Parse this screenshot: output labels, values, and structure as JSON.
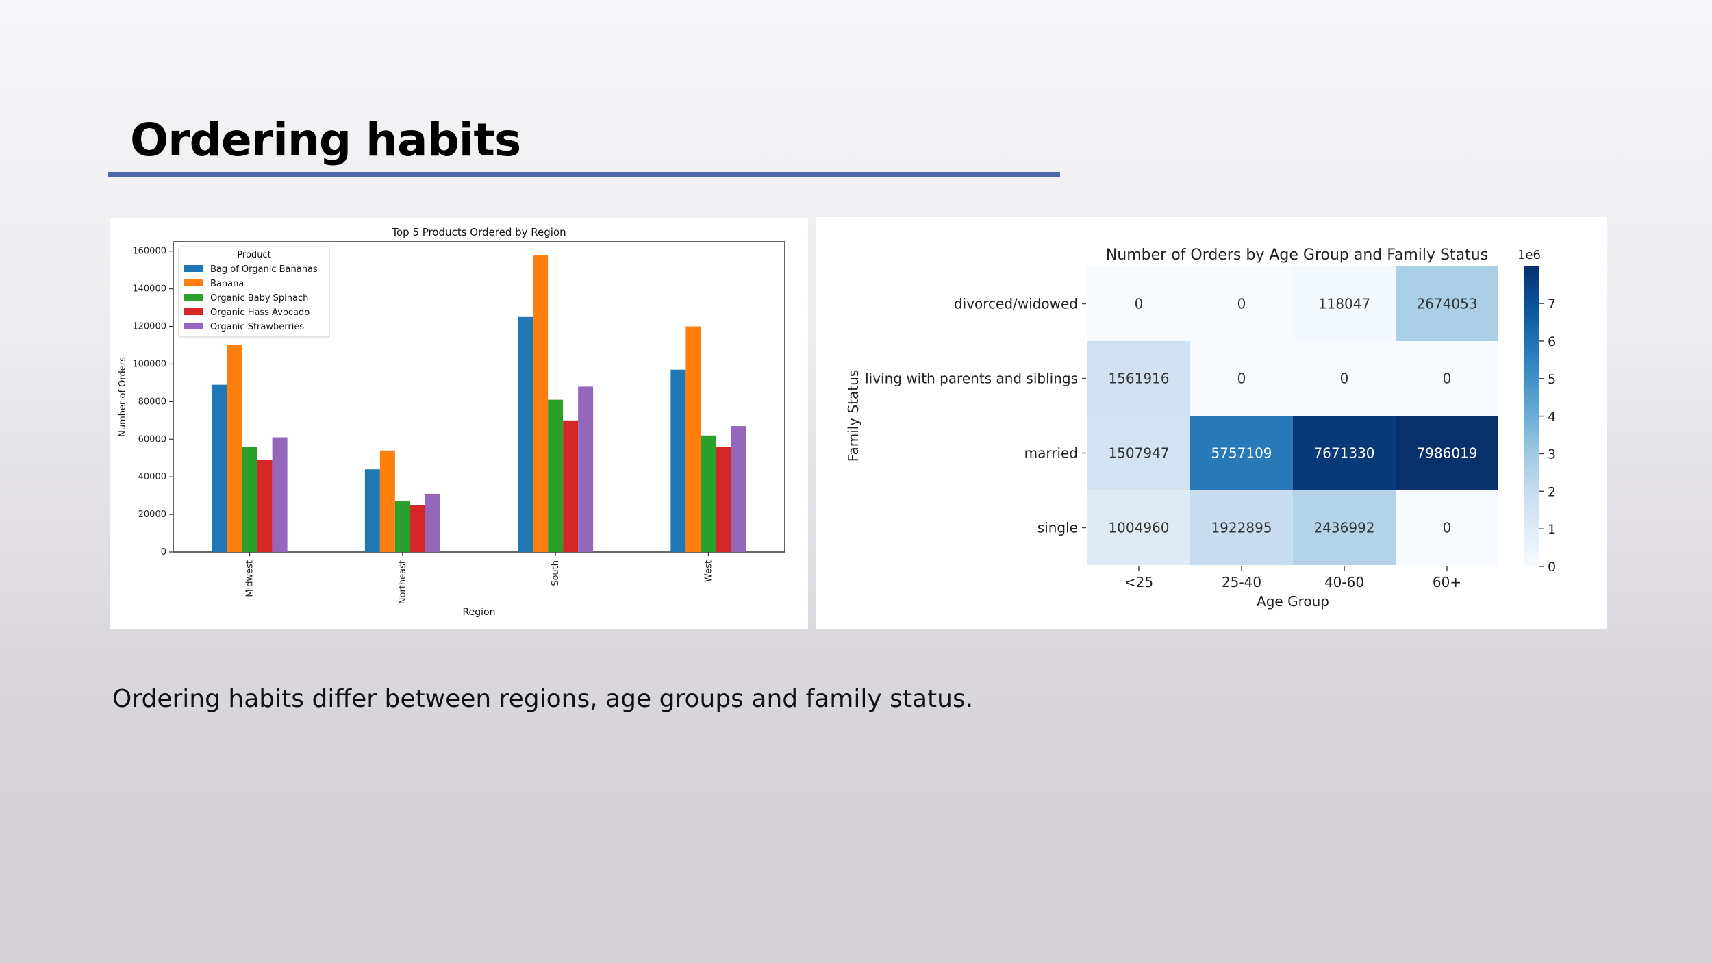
{
  "slide": {
    "title": "Ordering habits",
    "caption": "Ordering habits differ between regions, age groups and family status."
  },
  "chart_data": [
    {
      "type": "bar",
      "title": "Top 5 Products Ordered by Region",
      "xlabel": "Region",
      "ylabel": "Number of Orders",
      "ylim": [
        0,
        165000
      ],
      "yticks": [
        0,
        20000,
        40000,
        60000,
        80000,
        100000,
        120000,
        140000,
        160000
      ],
      "categories": [
        "Midwest",
        "Northeast",
        "South",
        "West"
      ],
      "legend": {
        "title": "Product",
        "placement": "top-left"
      },
      "series": [
        {
          "name": "Bag of Organic Bananas",
          "color": "#1f77b4",
          "values": [
            89000,
            44000,
            125000,
            97000
          ]
        },
        {
          "name": "Banana",
          "color": "#ff7f0e",
          "values": [
            110000,
            54000,
            158000,
            120000
          ]
        },
        {
          "name": "Organic Baby Spinach",
          "color": "#2ca02c",
          "values": [
            56000,
            27000,
            81000,
            62000
          ]
        },
        {
          "name": "Organic Hass Avocado",
          "color": "#d62728",
          "values": [
            49000,
            25000,
            70000,
            56000
          ]
        },
        {
          "name": "Organic Strawberries",
          "color": "#9467bd",
          "values": [
            61000,
            31000,
            88000,
            67000
          ]
        }
      ]
    },
    {
      "type": "heatmap",
      "title": "Number of Orders by Age Group and Family Status",
      "xlabel": "Age Group",
      "ylabel": "Family Status",
      "x_categories": [
        "<25",
        "25-40",
        "40-60",
        "60+"
      ],
      "y_categories": [
        "divorced/widowed",
        "living with parents and siblings",
        "married",
        "single"
      ],
      "values": [
        [
          0,
          0,
          118047,
          2674053
        ],
        [
          1561916,
          0,
          0,
          0
        ],
        [
          1507947,
          5757109,
          7671330,
          7986019
        ],
        [
          1004960,
          1922895,
          2436992,
          0
        ]
      ],
      "colorbar": {
        "scale_label": "1e6",
        "ticks": [
          "0",
          "1",
          "2",
          "3",
          "4",
          "5",
          "6",
          "7"
        ],
        "range": [
          0,
          7986019
        ],
        "colormap": "Blues"
      }
    }
  ]
}
